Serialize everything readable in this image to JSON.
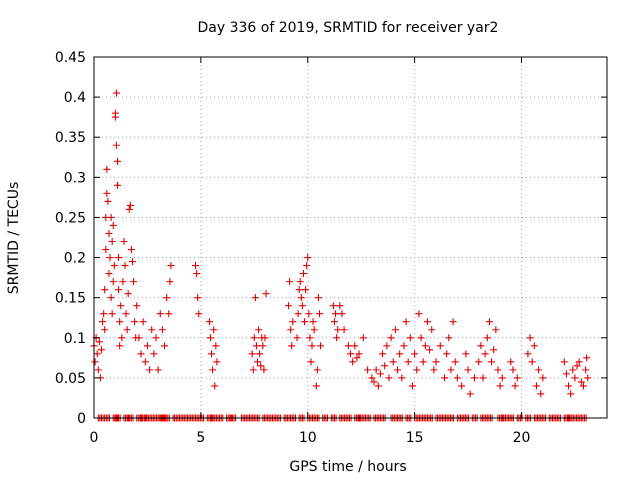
{
  "chart_data": {
    "type": "scatter",
    "title": "Day 336 of 2019, SRMTID for receiver yar2",
    "xlabel": "GPS time / hours",
    "ylabel": "SRMTID / TECUs",
    "xlim": [
      0,
      24
    ],
    "ylim": [
      0,
      0.45
    ],
    "xticks": [
      0,
      5,
      10,
      15,
      20
    ],
    "yticks": [
      0,
      0.05,
      0.1,
      0.15,
      0.2,
      0.25,
      0.3,
      0.35,
      0.4,
      0.45
    ],
    "grid": true,
    "marker": "plus",
    "color": "#e00000",
    "series": [
      {
        "name": "SRMTID",
        "points": [
          [
            0.0,
            0.09
          ],
          [
            0.05,
            0.07
          ],
          [
            0.1,
            0.1
          ],
          [
            0.15,
            0.08
          ],
          [
            0.2,
            0.06
          ],
          [
            0.25,
            0.095
          ],
          [
            0.3,
            0.05
          ],
          [
            0.35,
            0.085
          ],
          [
            0.4,
            0.12
          ],
          [
            0.45,
            0.13
          ],
          [
            0.5,
            0.11
          ],
          [
            0.5,
            0.16
          ],
          [
            0.55,
            0.21
          ],
          [
            0.55,
            0.25
          ],
          [
            0.6,
            0.28
          ],
          [
            0.6,
            0.31
          ],
          [
            0.65,
            0.27
          ],
          [
            0.7,
            0.23
          ],
          [
            0.7,
            0.18
          ],
          [
            0.75,
            0.2
          ],
          [
            0.8,
            0.25
          ],
          [
            0.8,
            0.15
          ],
          [
            0.85,
            0.22
          ],
          [
            0.85,
            0.13
          ],
          [
            0.9,
            0.17
          ],
          [
            0.9,
            0.24
          ],
          [
            0.95,
            0.19
          ],
          [
            1.0,
            0.38
          ],
          [
            1.0,
            0.375
          ],
          [
            1.05,
            0.405
          ],
          [
            1.05,
            0.34
          ],
          [
            1.1,
            0.32
          ],
          [
            1.1,
            0.29
          ],
          [
            1.15,
            0.2
          ],
          [
            1.15,
            0.16
          ],
          [
            1.2,
            0.12
          ],
          [
            1.2,
            0.09
          ],
          [
            1.25,
            0.14
          ],
          [
            1.3,
            0.1
          ],
          [
            1.35,
            0.17
          ],
          [
            1.4,
            0.22
          ],
          [
            1.45,
            0.19
          ],
          [
            1.5,
            0.13
          ],
          [
            1.55,
            0.11
          ],
          [
            1.6,
            0.155
          ],
          [
            1.65,
            0.26
          ],
          [
            1.7,
            0.265
          ],
          [
            1.75,
            0.21
          ],
          [
            1.8,
            0.195
          ],
          [
            1.85,
            0.17
          ],
          [
            1.9,
            0.12
          ],
          [
            1.95,
            0.1
          ],
          [
            2.0,
            0.14
          ],
          [
            2.1,
            0.1
          ],
          [
            2.2,
            0.08
          ],
          [
            2.3,
            0.12
          ],
          [
            2.4,
            0.07
          ],
          [
            2.5,
            0.09
          ],
          [
            2.6,
            0.06
          ],
          [
            2.7,
            0.11
          ],
          [
            2.8,
            0.08
          ],
          [
            2.9,
            0.1
          ],
          [
            3.0,
            0.06
          ],
          [
            3.1,
            0.13
          ],
          [
            3.2,
            0.11
          ],
          [
            3.3,
            0.09
          ],
          [
            3.4,
            0.15
          ],
          [
            3.5,
            0.13
          ],
          [
            3.55,
            0.17
          ],
          [
            3.6,
            0.19
          ],
          [
            4.75,
            0.19
          ],
          [
            4.8,
            0.18
          ],
          [
            4.85,
            0.15
          ],
          [
            4.9,
            0.13
          ],
          [
            5.4,
            0.12
          ],
          [
            5.45,
            0.1
          ],
          [
            5.5,
            0.08
          ],
          [
            5.55,
            0.06
          ],
          [
            5.6,
            0.11
          ],
          [
            5.65,
            0.04
          ],
          [
            5.7,
            0.09
          ],
          [
            5.75,
            0.07
          ],
          [
            7.4,
            0.08
          ],
          [
            7.45,
            0.06
          ],
          [
            7.5,
            0.1
          ],
          [
            7.55,
            0.15
          ],
          [
            7.6,
            0.09
          ],
          [
            7.65,
            0.07
          ],
          [
            7.7,
            0.11
          ],
          [
            7.75,
            0.08
          ],
          [
            7.8,
            0.065
          ],
          [
            7.85,
            0.1
          ],
          [
            7.9,
            0.09
          ],
          [
            7.95,
            0.06
          ],
          [
            8.0,
            0.1
          ],
          [
            8.05,
            0.155
          ],
          [
            9.1,
            0.14
          ],
          [
            9.15,
            0.17
          ],
          [
            9.2,
            0.11
          ],
          [
            9.25,
            0.09
          ],
          [
            9.3,
            0.12
          ],
          [
            9.5,
            0.1
          ],
          [
            9.55,
            0.13
          ],
          [
            9.6,
            0.16
          ],
          [
            9.65,
            0.17
          ],
          [
            9.7,
            0.15
          ],
          [
            9.75,
            0.14
          ],
          [
            9.8,
            0.18
          ],
          [
            9.85,
            0.12
          ],
          [
            9.9,
            0.16
          ],
          [
            9.95,
            0.19
          ],
          [
            10.0,
            0.2
          ],
          [
            10.05,
            0.13
          ],
          [
            10.1,
            0.1
          ],
          [
            10.15,
            0.07
          ],
          [
            10.2,
            0.09
          ],
          [
            10.25,
            0.12
          ],
          [
            10.3,
            0.11
          ],
          [
            10.4,
            0.04
          ],
          [
            10.45,
            0.06
          ],
          [
            10.5,
            0.15
          ],
          [
            10.55,
            0.13
          ],
          [
            10.6,
            0.09
          ],
          [
            11.2,
            0.14
          ],
          [
            11.25,
            0.12
          ],
          [
            11.3,
            0.13
          ],
          [
            11.35,
            0.1
          ],
          [
            11.4,
            0.11
          ],
          [
            11.5,
            0.14
          ],
          [
            11.6,
            0.13
          ],
          [
            11.7,
            0.11
          ],
          [
            11.9,
            0.09
          ],
          [
            12.0,
            0.08
          ],
          [
            12.1,
            0.07
          ],
          [
            12.2,
            0.09
          ],
          [
            12.3,
            0.075
          ],
          [
            12.4,
            0.08
          ],
          [
            12.6,
            0.1
          ],
          [
            12.8,
            0.06
          ],
          [
            13.0,
            0.05
          ],
          [
            13.1,
            0.045
          ],
          [
            13.2,
            0.06
          ],
          [
            13.3,
            0.04
          ],
          [
            13.4,
            0.055
          ],
          [
            13.5,
            0.08
          ],
          [
            13.6,
            0.065
          ],
          [
            13.7,
            0.09
          ],
          [
            13.8,
            0.05
          ],
          [
            13.9,
            0.1
          ],
          [
            14.0,
            0.07
          ],
          [
            14.1,
            0.11
          ],
          [
            14.2,
            0.06
          ],
          [
            14.3,
            0.08
          ],
          [
            14.4,
            0.05
          ],
          [
            14.5,
            0.09
          ],
          [
            14.6,
            0.12
          ],
          [
            14.7,
            0.07
          ],
          [
            14.8,
            0.1
          ],
          [
            14.9,
            0.04
          ],
          [
            15.0,
            0.08
          ],
          [
            15.1,
            0.06
          ],
          [
            15.2,
            0.13
          ],
          [
            15.3,
            0.1
          ],
          [
            15.4,
            0.07
          ],
          [
            15.5,
            0.09
          ],
          [
            15.6,
            0.12
          ],
          [
            15.7,
            0.085
          ],
          [
            15.8,
            0.11
          ],
          [
            15.9,
            0.06
          ],
          [
            16.0,
            0.07
          ],
          [
            16.2,
            0.09
          ],
          [
            16.4,
            0.05
          ],
          [
            16.5,
            0.08
          ],
          [
            16.6,
            0.1
          ],
          [
            16.7,
            0.06
          ],
          [
            16.8,
            0.12
          ],
          [
            16.9,
            0.07
          ],
          [
            17.0,
            0.05
          ],
          [
            17.2,
            0.04
          ],
          [
            17.4,
            0.08
          ],
          [
            17.5,
            0.06
          ],
          [
            17.6,
            0.03
          ],
          [
            17.8,
            0.05
          ],
          [
            18.0,
            0.07
          ],
          [
            18.1,
            0.09
          ],
          [
            18.2,
            0.05
          ],
          [
            18.3,
            0.08
          ],
          [
            18.4,
            0.1
          ],
          [
            18.5,
            0.12
          ],
          [
            18.6,
            0.07
          ],
          [
            18.7,
            0.085
          ],
          [
            18.8,
            0.11
          ],
          [
            18.9,
            0.06
          ],
          [
            19.0,
            0.04
          ],
          [
            19.1,
            0.05
          ],
          [
            19.5,
            0.07
          ],
          [
            19.6,
            0.06
          ],
          [
            19.7,
            0.04
          ],
          [
            19.8,
            0.05
          ],
          [
            20.3,
            0.08
          ],
          [
            20.4,
            0.1
          ],
          [
            20.5,
            0.07
          ],
          [
            20.6,
            0.09
          ],
          [
            20.7,
            0.04
          ],
          [
            20.8,
            0.06
          ],
          [
            20.9,
            0.03
          ],
          [
            21.0,
            0.05
          ],
          [
            22.0,
            0.07
          ],
          [
            22.1,
            0.055
          ],
          [
            22.2,
            0.04
          ],
          [
            22.3,
            0.03
          ],
          [
            22.4,
            0.06
          ],
          [
            22.5,
            0.05
          ],
          [
            22.6,
            0.065
          ],
          [
            22.7,
            0.07
          ],
          [
            22.8,
            0.045
          ],
          [
            22.9,
            0.04
          ],
          [
            23.0,
            0.06
          ],
          [
            23.05,
            0.075
          ],
          [
            23.1,
            0.05
          ]
        ],
        "zero_x": [
          0.2,
          0.5,
          0.9,
          1.0,
          1.4,
          1.6,
          2.0,
          2.2,
          2.4,
          2.7,
          3.0,
          3.1,
          3.3,
          3.7,
          4.0,
          4.3,
          4.6,
          4.9,
          5.3,
          5.5,
          5.8,
          6.2,
          6.4,
          6.9,
          7.2,
          7.5,
          7.9,
          8.2,
          8.5,
          8.9,
          9.2,
          9.6,
          10.0,
          10.3,
          10.7,
          11.1,
          11.5,
          11.8,
          12.2,
          12.4,
          12.7,
          13.1,
          13.4,
          13.9,
          14.2,
          14.6,
          15.0,
          15.3,
          15.6,
          16.0,
          16.3,
          16.6,
          17.0,
          17.3,
          17.7,
          18.1,
          18.4,
          18.9,
          19.1,
          19.4,
          19.8,
          20.2,
          20.6,
          20.9,
          21.3,
          21.6,
          22.0,
          22.2,
          22.5,
          22.8
        ]
      }
    ]
  }
}
